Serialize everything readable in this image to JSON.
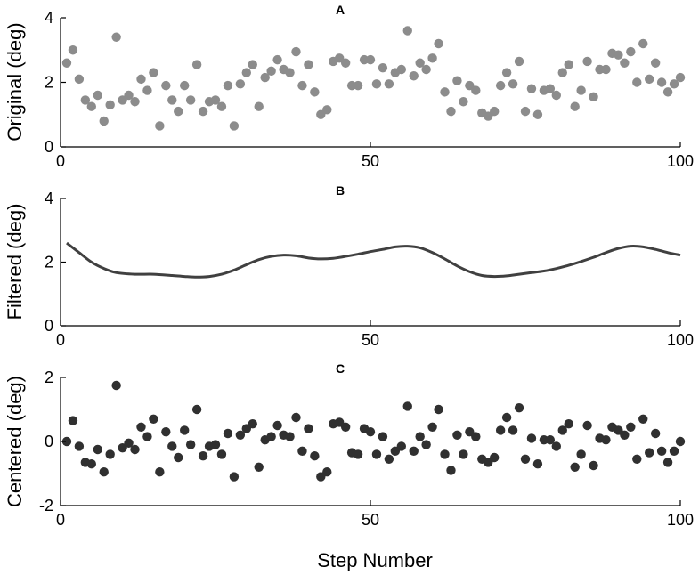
{
  "chart_data": [
    {
      "id": "A",
      "type": "scatter",
      "panel_label": "A",
      "title": "",
      "ylabel": "Original (deg)",
      "xlabel": "",
      "xlim": [
        0,
        100
      ],
      "ylim": [
        0,
        4
      ],
      "xticks": [
        0,
        50,
        100
      ],
      "yticks": [
        0,
        2,
        4
      ],
      "marker_color": "#8c8c8c",
      "x": [
        1,
        2,
        3,
        4,
        5,
        6,
        7,
        8,
        9,
        10,
        11,
        12,
        13,
        14,
        15,
        16,
        17,
        18,
        19,
        20,
        21,
        22,
        23,
        24,
        25,
        26,
        27,
        28,
        29,
        30,
        31,
        32,
        33,
        34,
        35,
        36,
        37,
        38,
        39,
        40,
        41,
        42,
        43,
        44,
        45,
        46,
        47,
        48,
        49,
        50,
        51,
        52,
        53,
        54,
        55,
        56,
        57,
        58,
        59,
        60,
        61,
        62,
        63,
        64,
        65,
        66,
        67,
        68,
        69,
        70,
        71,
        72,
        73,
        74,
        75,
        76,
        77,
        78,
        79,
        80,
        81,
        82,
        83,
        84,
        85,
        86,
        87,
        88,
        89,
        90,
        91,
        92,
        93,
        94,
        95,
        96,
        97,
        98,
        99,
        100
      ],
      "y": [
        2.6,
        3.0,
        2.1,
        1.45,
        1.25,
        1.6,
        0.8,
        1.3,
        3.4,
        1.45,
        1.6,
        1.4,
        2.1,
        1.75,
        2.3,
        0.65,
        1.9,
        1.45,
        1.1,
        1.9,
        1.45,
        2.55,
        1.1,
        1.4,
        1.45,
        1.25,
        1.9,
        0.65,
        1.95,
        2.3,
        2.55,
        1.25,
        2.15,
        2.35,
        2.7,
        2.4,
        2.3,
        2.95,
        1.9,
        2.55,
        1.7,
        1.0,
        1.15,
        2.65,
        2.75,
        2.6,
        1.9,
        1.9,
        2.7,
        2.7,
        1.95,
        2.45,
        1.95,
        2.3,
        2.4,
        3.6,
        2.2,
        2.6,
        2.4,
        2.75,
        3.2,
        1.7,
        1.1,
        2.05,
        1.4,
        1.9,
        1.75,
        1.05,
        0.95,
        1.1,
        1.9,
        2.3,
        1.95,
        2.65,
        1.1,
        1.8,
        1.0,
        1.75,
        1.8,
        1.6,
        2.3,
        2.55,
        1.25,
        1.75,
        2.65,
        1.55,
        2.4,
        2.4,
        2.9,
        2.85,
        2.6,
        2.95,
        2.0,
        3.2,
        2.1,
        2.6,
        2.0,
        1.7,
        1.95,
        2.15
      ]
    },
    {
      "id": "B",
      "type": "line",
      "panel_label": "B",
      "title": "",
      "ylabel": "Filtered (deg)",
      "xlabel": "",
      "xlim": [
        0,
        100
      ],
      "ylim": [
        0,
        4
      ],
      "xticks": [
        0,
        50,
        100
      ],
      "yticks": [
        0,
        2,
        4
      ],
      "line_color": "#404040",
      "x": [
        1,
        3,
        5,
        7,
        9,
        12,
        15,
        18,
        20,
        22,
        24,
        26,
        28,
        30,
        32,
        34,
        36,
        38,
        40,
        42,
        44,
        46,
        48,
        50,
        52,
        54,
        56,
        58,
        60,
        62,
        64,
        66,
        68,
        70,
        72,
        74,
        76,
        78,
        80,
        82,
        84,
        86,
        88,
        90,
        92,
        94,
        96,
        98,
        100
      ],
      "y": [
        2.6,
        2.3,
        2.0,
        1.8,
        1.67,
        1.62,
        1.62,
        1.58,
        1.55,
        1.53,
        1.55,
        1.62,
        1.75,
        1.92,
        2.08,
        2.18,
        2.22,
        2.2,
        2.13,
        2.1,
        2.12,
        2.18,
        2.25,
        2.33,
        2.4,
        2.48,
        2.5,
        2.45,
        2.3,
        2.1,
        1.88,
        1.7,
        1.58,
        1.55,
        1.57,
        1.62,
        1.67,
        1.72,
        1.8,
        1.9,
        2.02,
        2.15,
        2.3,
        2.43,
        2.5,
        2.48,
        2.4,
        2.3,
        2.22
      ]
    },
    {
      "id": "C",
      "type": "scatter",
      "panel_label": "C",
      "title": "",
      "ylabel": "Centered (deg)",
      "xlabel": "Step Number",
      "xlim": [
        0,
        100
      ],
      "ylim": [
        -2,
        2
      ],
      "xticks": [
        0,
        50,
        100
      ],
      "yticks": [
        -2,
        0,
        2
      ],
      "marker_color": "#303030",
      "x": [
        1,
        2,
        3,
        4,
        5,
        6,
        7,
        8,
        9,
        10,
        11,
        12,
        13,
        14,
        15,
        16,
        17,
        18,
        19,
        20,
        21,
        22,
        23,
        24,
        25,
        26,
        27,
        28,
        29,
        30,
        31,
        32,
        33,
        34,
        35,
        36,
        37,
        38,
        39,
        40,
        41,
        42,
        43,
        44,
        45,
        46,
        47,
        48,
        49,
        50,
        51,
        52,
        53,
        54,
        55,
        56,
        57,
        58,
        59,
        60,
        61,
        62,
        63,
        64,
        65,
        66,
        67,
        68,
        69,
        70,
        71,
        72,
        73,
        74,
        75,
        76,
        77,
        78,
        79,
        80,
        81,
        82,
        83,
        84,
        85,
        86,
        87,
        88,
        89,
        90,
        91,
        92,
        93,
        94,
        95,
        96,
        97,
        98,
        99,
        100
      ],
      "y": [
        0.0,
        0.65,
        -0.15,
        -0.65,
        -0.7,
        -0.25,
        -0.95,
        -0.4,
        1.75,
        -0.2,
        -0.05,
        -0.25,
        0.45,
        0.15,
        0.7,
        -0.95,
        0.3,
        -0.15,
        -0.5,
        0.35,
        -0.1,
        1.0,
        -0.45,
        -0.15,
        -0.1,
        -0.4,
        0.25,
        -1.1,
        0.2,
        0.4,
        0.55,
        -0.8,
        0.05,
        0.15,
        0.5,
        0.2,
        0.15,
        0.75,
        -0.3,
        0.4,
        -0.45,
        -1.1,
        -0.95,
        0.55,
        0.6,
        0.45,
        -0.35,
        -0.4,
        0.4,
        0.3,
        -0.4,
        0.15,
        -0.55,
        -0.3,
        -0.15,
        1.1,
        -0.3,
        0.15,
        -0.1,
        0.45,
        1.0,
        -0.4,
        -0.9,
        0.2,
        -0.4,
        0.3,
        0.15,
        -0.55,
        -0.65,
        -0.5,
        0.35,
        0.75,
        0.35,
        1.05,
        -0.55,
        0.1,
        -0.7,
        0.05,
        0.05,
        -0.15,
        0.35,
        0.55,
        -0.8,
        -0.4,
        0.5,
        -0.75,
        0.1,
        0.05,
        0.45,
        0.35,
        0.2,
        0.45,
        -0.55,
        0.7,
        -0.35,
        0.25,
        -0.3,
        -0.65,
        -0.3,
        0.0
      ]
    }
  ]
}
